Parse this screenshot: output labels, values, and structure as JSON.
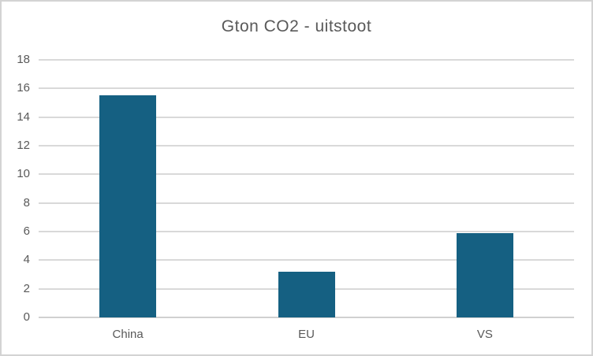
{
  "chart_data": {
    "type": "bar",
    "title": "Gton CO2 - uitstoot",
    "categories": [
      "China",
      "EU",
      "VS"
    ],
    "values": [
      15.5,
      3.2,
      5.9
    ],
    "xlabel": "",
    "ylabel": "",
    "ylim": [
      0,
      18
    ],
    "ytick_step": 2,
    "ytick_labels": [
      "0",
      "2",
      "4",
      "6",
      "8",
      "10",
      "12",
      "14",
      "16",
      "18"
    ],
    "grid": true,
    "legend": false,
    "colors": {
      "bar": "#156082",
      "gridline": "#d9d9d9",
      "axis_line": "#d0d0d0",
      "tick_label_text": "#595959",
      "title_text": "#595959",
      "background": "#ffffff",
      "chart_border": "#d3d3d3"
    }
  }
}
